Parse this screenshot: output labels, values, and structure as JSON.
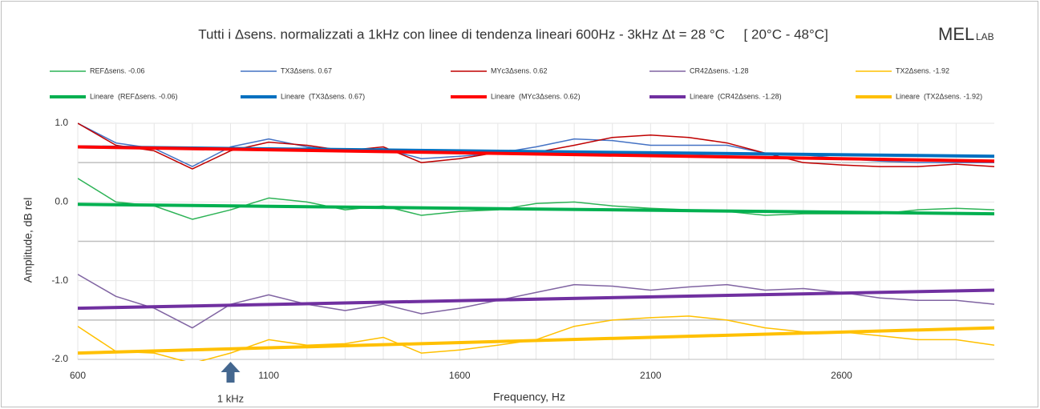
{
  "chart_data": {
    "type": "line",
    "title": "Tutti i Δsens. normalizzati a 1kHz con linee di tendenza lineari 600Hz - 3kHz Δt = 28 °C     [ 20°C - 48°C]",
    "logo_main": "MEL",
    "logo_sub": "LAB",
    "x_label": "Frequency, Hz",
    "y_label": "Amplitude, dB rel",
    "annotation": {
      "text": "1 kHz",
      "x": 1000
    },
    "x": [
      600,
      700,
      800,
      900,
      1000,
      1100,
      1200,
      1300,
      1400,
      1500,
      1600,
      1700,
      1800,
      1900,
      2000,
      2100,
      2200,
      2300,
      2400,
      2500,
      2600,
      2700,
      2800,
      2900,
      3000
    ],
    "xlim": [
      600,
      3000
    ],
    "xticks": [
      600,
      1100,
      1600,
      2100,
      2600
    ],
    "xgrid_minor": [
      700,
      800,
      900,
      1000,
      1200,
      1300,
      1400,
      1500,
      1700,
      1800,
      1900,
      2000,
      2200,
      2300,
      2400,
      2500,
      2700,
      2800,
      2900
    ],
    "ylim": [
      -2,
      1
    ],
    "yticks": [
      {
        "value": -2,
        "label": "-2.0"
      },
      {
        "value": -1,
        "label": "-1.0"
      },
      {
        "value": 0,
        "label": "0.0"
      },
      {
        "value": 1,
        "label": "1.0"
      }
    ],
    "ygrid_minor": [
      -1.5,
      -0.5,
      0.5
    ],
    "grid": true,
    "legend": "top",
    "series": [
      {
        "name": "REFΔsens. -0.06",
        "color": "#2db356",
        "width": 1.5,
        "values": [
          0.3,
          0.0,
          -0.05,
          -0.22,
          -0.1,
          0.05,
          0.0,
          -0.1,
          -0.05,
          -0.17,
          -0.12,
          -0.1,
          -0.02,
          0.0,
          -0.05,
          -0.08,
          -0.1,
          -0.12,
          -0.17,
          -0.15,
          -0.15,
          -0.15,
          -0.1,
          -0.08,
          -0.1
        ]
      },
      {
        "name": "TX3Δsens. 0.67",
        "color": "#4472c4",
        "width": 1.5,
        "values": [
          1.0,
          0.75,
          0.68,
          0.45,
          0.7,
          0.8,
          0.7,
          0.65,
          0.68,
          0.55,
          0.58,
          0.62,
          0.7,
          0.8,
          0.78,
          0.72,
          0.72,
          0.72,
          0.62,
          0.6,
          0.55,
          0.52,
          0.5,
          0.5,
          0.5
        ]
      },
      {
        "name": "MYc3Δsens. 0.62",
        "color": "#c00000",
        "width": 1.5,
        "values": [
          1.0,
          0.72,
          0.65,
          0.42,
          0.65,
          0.76,
          0.72,
          0.65,
          0.7,
          0.5,
          0.55,
          0.63,
          0.63,
          0.72,
          0.82,
          0.85,
          0.82,
          0.75,
          0.62,
          0.5,
          0.47,
          0.45,
          0.45,
          0.48,
          0.45
        ]
      },
      {
        "name": "CR42Δsens. -1.28",
        "color": "#8064a2",
        "width": 1.5,
        "values": [
          -0.92,
          -1.2,
          -1.35,
          -1.6,
          -1.3,
          -1.18,
          -1.3,
          -1.38,
          -1.3,
          -1.42,
          -1.35,
          -1.25,
          -1.15,
          -1.05,
          -1.07,
          -1.12,
          -1.08,
          -1.05,
          -1.12,
          -1.1,
          -1.15,
          -1.22,
          -1.25,
          -1.25,
          -1.3
        ]
      },
      {
        "name": "TX2Δsens. -1.92",
        "color": "#ffc000",
        "width": 1.5,
        "values": [
          -1.58,
          -1.9,
          -1.92,
          -2.05,
          -1.92,
          -1.75,
          -1.82,
          -1.8,
          -1.72,
          -1.92,
          -1.88,
          -1.82,
          -1.75,
          -1.58,
          -1.5,
          -1.47,
          -1.45,
          -1.5,
          -1.6,
          -1.65,
          -1.65,
          -1.7,
          -1.75,
          -1.75,
          -1.82
        ]
      },
      {
        "name": "Lineare  (REFΔsens. -0.06)",
        "color": "#00b050",
        "width": 4,
        "x": [
          600,
          3000
        ],
        "values": [
          -0.03,
          -0.15
        ]
      },
      {
        "name": "Lineare  (TX3Δsens. 0.67)",
        "color": "#0070c0",
        "width": 4,
        "x": [
          600,
          3000
        ],
        "values": [
          0.7,
          0.58
        ]
      },
      {
        "name": "Lineare  (MYc3Δsens. 0.62)",
        "color": "#ff0000",
        "width": 4,
        "x": [
          600,
          3000
        ],
        "values": [
          0.7,
          0.52
        ]
      },
      {
        "name": "Lineare  (CR42Δsens. -1.28)",
        "color": "#7030a0",
        "width": 4,
        "x": [
          600,
          3000
        ],
        "values": [
          -1.35,
          -1.12
        ]
      },
      {
        "name": "Lineare  (TX2Δsens. -1.92)",
        "color": "#ffc000",
        "width": 4,
        "x": [
          600,
          3000
        ],
        "values": [
          -1.92,
          -1.6
        ]
      }
    ]
  }
}
